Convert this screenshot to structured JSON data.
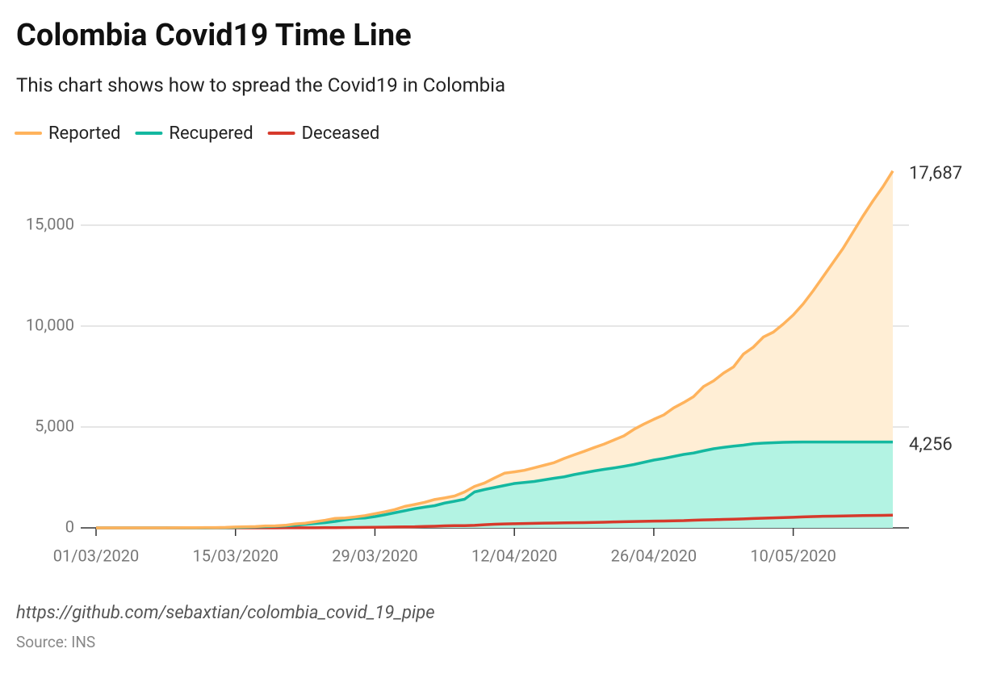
{
  "chart_data": {
    "type": "line",
    "title": "Colombia Covid19 Time Line",
    "subtitle": "This chart shows how to spread the Covid19 in Colombia",
    "footer": "https://github.com/sebaxtian/colombia_covid_19_pipe",
    "source": "Source: INS",
    "legend": "top-left",
    "grid": true,
    "ylim": [
      0,
      18000
    ],
    "yticks": [
      0,
      {
        "value": 5000,
        "label": "5,000"
      },
      {
        "value": 10000,
        "label": "10,000"
      },
      {
        "value": 15000,
        "label": "15,000"
      }
    ],
    "categories": [
      "01/03/2020",
      null,
      null,
      null,
      null,
      null,
      null,
      null,
      null,
      null,
      null,
      null,
      null,
      null,
      "15/03/2020",
      null,
      null,
      null,
      null,
      null,
      null,
      null,
      null,
      null,
      null,
      null,
      null,
      null,
      "29/03/2020",
      null,
      null,
      null,
      null,
      null,
      null,
      null,
      null,
      null,
      null,
      null,
      null,
      null,
      "12/04/2020",
      null,
      null,
      null,
      null,
      null,
      null,
      null,
      null,
      null,
      null,
      null,
      null,
      null,
      "26/04/2020",
      null,
      null,
      null,
      null,
      null,
      null,
      null,
      null,
      null,
      null,
      null,
      null,
      null,
      "10/05/2020",
      null,
      null,
      null,
      null,
      null,
      null,
      null,
      null,
      null,
      null
    ],
    "series": [
      {
        "name": "Reported",
        "color": "#ffb35c",
        "area_color": "#ffeed5",
        "values": [
          0,
          0,
          0,
          0,
          0,
          1,
          1,
          1,
          3,
          9,
          9,
          13,
          16,
          24,
          45,
          54,
          65,
          93,
          102,
          128,
          196,
          231,
          306,
          378,
          470,
          491,
          539,
          608,
          702,
          798,
          906,
          1065,
          1161,
          1267,
          1406,
          1485,
          1579,
          1780,
          2054,
          2223,
          2473,
          2709,
          2776,
          2852,
          2979,
          3105,
          3233,
          3439,
          3621,
          3792,
          3977,
          4149,
          4356,
          4561,
          4881,
          5142,
          5379,
          5597,
          5949,
          6211,
          6507,
          7006,
          7285,
          7668,
          7973,
          8613,
          8959,
          9456,
          9700,
          10100,
          10550,
          11100,
          11750,
          12450,
          13150,
          13850,
          14650,
          15450,
          16200,
          16900,
          17687
        ],
        "value_labels": [
          null,
          null,
          null,
          null,
          null,
          null,
          null,
          null,
          null,
          null,
          null,
          null,
          null,
          null,
          null,
          null,
          null,
          null,
          null,
          null,
          null,
          null,
          null,
          null,
          null,
          null,
          null,
          null,
          null,
          null,
          null,
          null,
          null,
          null,
          null,
          null,
          null,
          null,
          null,
          null,
          null,
          null,
          null,
          null,
          null,
          null,
          null,
          null,
          null,
          null,
          null,
          null,
          null,
          null,
          null,
          null,
          null,
          null,
          null,
          null,
          null,
          null,
          null,
          null,
          null,
          null,
          null,
          null,
          null,
          null,
          null,
          null,
          null,
          null,
          null,
          null,
          null,
          null,
          null,
          null,
          "17,687"
        ]
      },
      {
        "name": "Recupered",
        "color": "#14b8a0",
        "area_color": "#b3f3e3",
        "values": [
          0,
          0,
          0,
          0,
          0,
          0,
          0,
          0,
          0,
          0,
          0,
          2,
          4,
          10,
          20,
          30,
          45,
          60,
          80,
          100,
          130,
          180,
          220,
          260,
          320,
          400,
          470,
          490,
          560,
          650,
          750,
          850,
          950,
          1030,
          1100,
          1230,
          1320,
          1420,
          1780,
          1900,
          2000,
          2100,
          2200,
          2250,
          2300,
          2380,
          2460,
          2530,
          2640,
          2730,
          2820,
          2900,
          2970,
          3050,
          3140,
          3250,
          3360,
          3440,
          3540,
          3640,
          3710,
          3820,
          3920,
          3990,
          4050,
          4100,
          4170,
          4200,
          4220,
          4240,
          4250,
          4256,
          4256,
          4256,
          4256,
          4256,
          4256,
          4256,
          4256,
          4256,
          4256
        ],
        "value_labels": [
          null,
          null,
          null,
          null,
          null,
          null,
          null,
          null,
          null,
          null,
          null,
          null,
          null,
          null,
          null,
          null,
          null,
          null,
          null,
          null,
          null,
          null,
          null,
          null,
          null,
          null,
          null,
          null,
          null,
          null,
          null,
          null,
          null,
          null,
          null,
          null,
          null,
          null,
          null,
          null,
          null,
          null,
          null,
          null,
          null,
          null,
          null,
          null,
          null,
          null,
          null,
          null,
          null,
          null,
          null,
          null,
          null,
          null,
          null,
          null,
          null,
          null,
          null,
          null,
          null,
          null,
          null,
          null,
          null,
          null,
          null,
          null,
          null,
          null,
          null,
          null,
          null,
          null,
          null,
          null,
          "4,256"
        ]
      },
      {
        "name": "Deceased",
        "color": "#d63a2c",
        "values": [
          0,
          0,
          0,
          0,
          0,
          0,
          0,
          0,
          0,
          0,
          0,
          0,
          0,
          0,
          0,
          0,
          1,
          1,
          2,
          3,
          4,
          6,
          6,
          9,
          12,
          16,
          19,
          25,
          31,
          35,
          46,
          50,
          54,
          69,
          80,
          100,
          109,
          112,
          127,
          153,
          179,
          196,
          206,
          215,
          225,
          233,
          240,
          248,
          253,
          260,
          269,
          278,
          293,
          306,
          313,
          325,
          333,
          340,
          350,
          358,
          378,
          393,
          407,
          420,
          432,
          445,
          463,
          479,
          493,
          510,
          524,
          546,
          562,
          574,
          582,
          590,
          600,
          610,
          617,
          622,
          630
        ]
      }
    ]
  }
}
